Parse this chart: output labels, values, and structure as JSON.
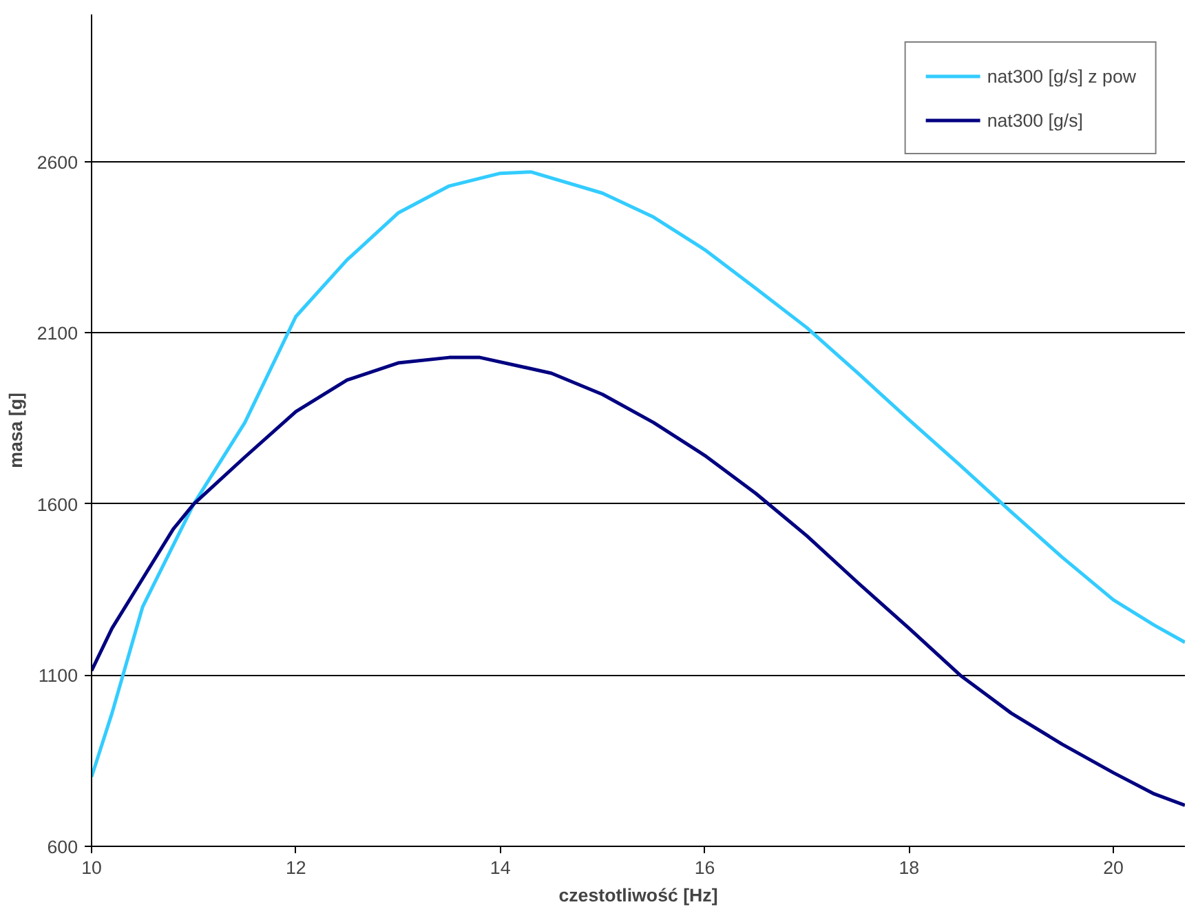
{
  "chart_data": {
    "type": "line",
    "xlabel": "czestotliwość [Hz]",
    "ylabel": "masa [g]",
    "xlim": [
      10,
      20.7
    ],
    "ylim": [
      600,
      3030
    ],
    "xticks": [
      10,
      12,
      14,
      16,
      18,
      20
    ],
    "yticks": [
      600,
      1100,
      1600,
      2100,
      2600
    ],
    "grid": "y",
    "legend": "top right",
    "marker": "none",
    "line_style": "solid",
    "series": [
      {
        "name": "nat300 [g/s] z pow",
        "color": "#33ccff",
        "x": [
          10,
          10.2,
          10.5,
          11,
          11.5,
          12,
          12.5,
          13,
          13.5,
          14,
          14.3,
          15,
          15.5,
          16,
          16.5,
          17,
          17.5,
          18,
          18.5,
          19,
          19.5,
          20,
          20.4,
          20.7
        ],
        "values": [
          803,
          989,
          1300,
          1600,
          1838,
          2148,
          2313,
          2450,
          2529,
          2566,
          2570,
          2508,
          2438,
          2343,
          2230,
          2115,
          1982,
          1846,
          1713,
          1577,
          1444,
          1320,
          1246,
          1196
        ]
      },
      {
        "name": "nat300 [g/s]",
        "color": "#000080",
        "x": [
          10,
          10.2,
          10.5,
          10.8,
          11,
          11.5,
          12,
          12.5,
          13,
          13.5,
          13.8,
          14.5,
          15,
          15.5,
          16,
          16.5,
          17,
          17.5,
          18,
          18.5,
          19,
          19.5,
          20,
          20.4,
          20.7
        ],
        "values": [
          1113,
          1237,
          1382,
          1527,
          1600,
          1737,
          1870,
          1962,
          2012,
          2028,
          2028,
          1982,
          1920,
          1838,
          1742,
          1631,
          1507,
          1370,
          1237,
          1100,
          989,
          898,
          815,
          753,
          720
        ]
      }
    ]
  }
}
